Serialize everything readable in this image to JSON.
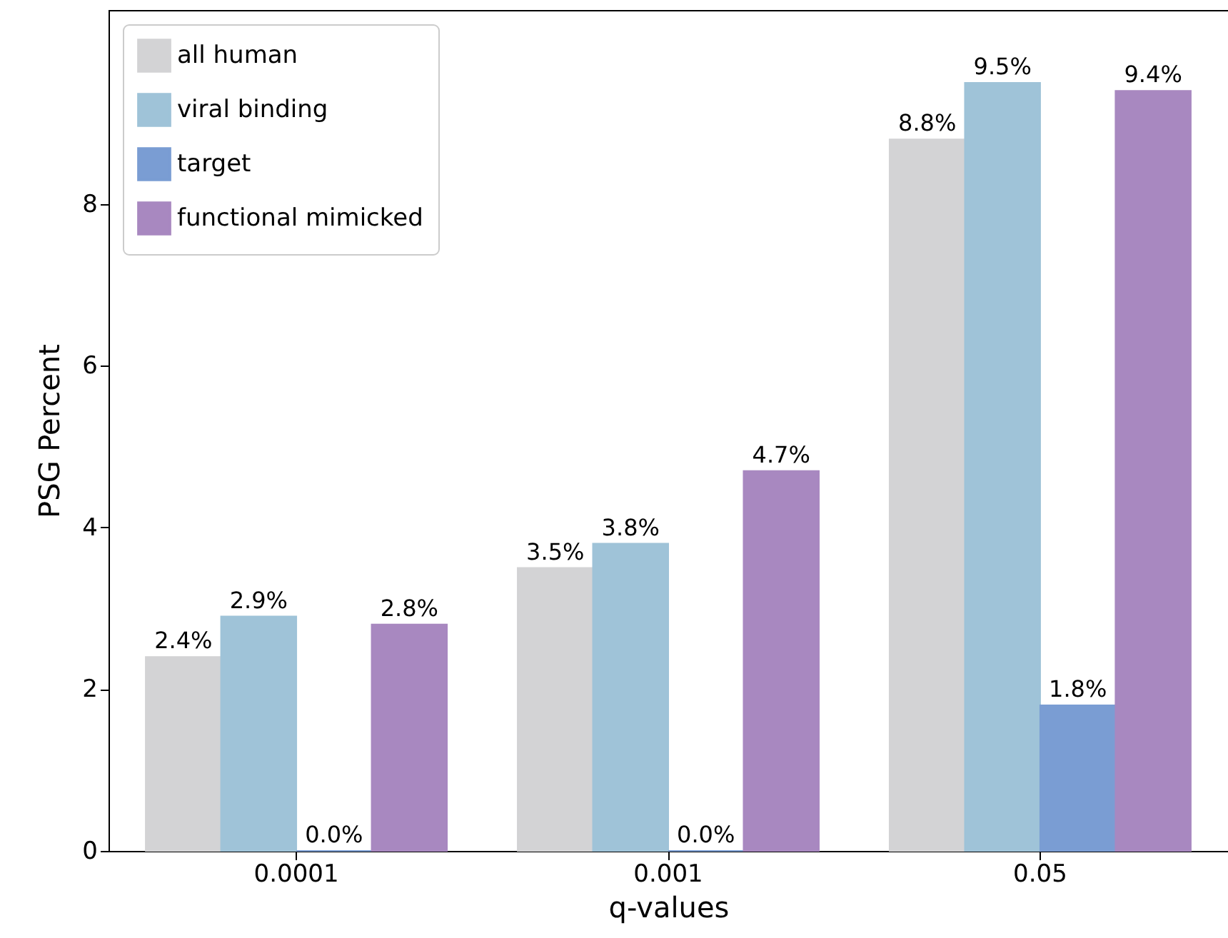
{
  "chart_data": {
    "type": "bar",
    "xlabel": "q-values",
    "ylabel": "PSG Percent",
    "categories": [
      "0.0001",
      "0.001",
      "0.05"
    ],
    "series": [
      {
        "name": "all human",
        "color": "#d3d3d5",
        "values": [
          2.4,
          3.5,
          8.8
        ],
        "value_labels": [
          "2.4%",
          "3.5%",
          "8.8%"
        ]
      },
      {
        "name": "viral binding",
        "color": "#9fc3d8",
        "values": [
          2.9,
          3.8,
          9.5
        ],
        "value_labels": [
          "2.9%",
          "3.8%",
          "9.5%"
        ]
      },
      {
        "name": "target",
        "color": "#7a9dd3",
        "values": [
          0.0,
          0.0,
          1.8
        ],
        "value_labels": [
          "0.0%",
          "0.0%",
          "1.8%"
        ]
      },
      {
        "name": "functional mimicked",
        "color": "#a888c0",
        "values": [
          2.8,
          4.7,
          9.4
        ],
        "value_labels": [
          "2.8%",
          "4.7%",
          "9.4%"
        ]
      }
    ],
    "ylim": [
      0,
      10.4
    ],
    "yticks": [
      0,
      2,
      4,
      6,
      8
    ],
    "grid": false,
    "legend": "top left"
  }
}
